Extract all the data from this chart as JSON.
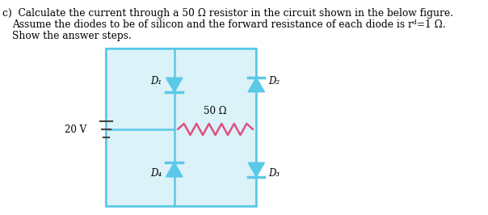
{
  "bg_color": "#ffffff",
  "circuit_color": "#5bc8e8",
  "diode_color": "#5bc8e8",
  "resistor_color": "#e05080",
  "text_color": "#000000",
  "voltage_label": "20 V",
  "resistor_label": "50 Ω",
  "d1_label": "D₁",
  "d2_label": "D₂",
  "d3_label": "D₃",
  "d4_label": "D₄"
}
